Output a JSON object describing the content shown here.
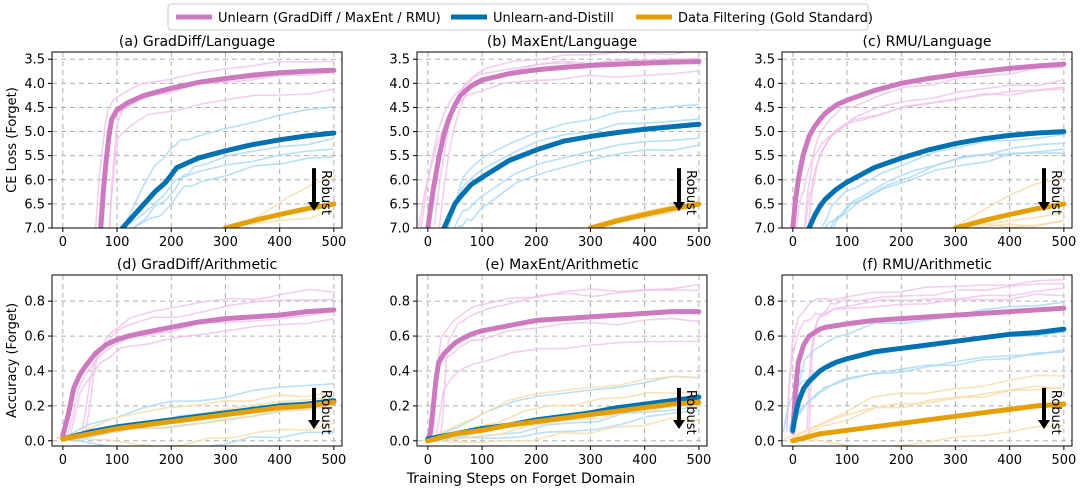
{
  "legend": {
    "entries": [
      {
        "label": "Unlearn (GradDiff / MaxEnt / RMU)",
        "color": "#cc79c0"
      },
      {
        "label": "Unlearn-and-Distill",
        "color": "#0072b2"
      },
      {
        "label": "Data Filtering (Gold Standard)",
        "color": "#e69f00"
      }
    ]
  },
  "shared": {
    "xlabel": "Training Steps on Forget Domain",
    "robust_label": "Robust",
    "x_ticks": [
      0,
      100,
      200,
      300,
      400,
      500
    ],
    "grid": true
  },
  "chart_data": [
    {
      "type": "line",
      "title": "(a) GradDiff/Language",
      "ylabel": "CE Loss (Forget)",
      "ylim": [
        7.0,
        3.35
      ],
      "y_ticks": [
        3.5,
        4.0,
        4.5,
        5.0,
        5.5,
        6.0,
        6.5,
        7.0
      ],
      "xlim": [
        -20,
        515
      ],
      "series": [
        {
          "key": "unlearn",
          "x": [
            70,
            75,
            80,
            85,
            90,
            100,
            120,
            150,
            200,
            250,
            300,
            350,
            400,
            450,
            500
          ],
          "y": [
            7.0,
            6.2,
            5.6,
            5.1,
            4.75,
            4.55,
            4.4,
            4.25,
            4.1,
            3.98,
            3.9,
            3.83,
            3.78,
            3.75,
            3.73
          ]
        },
        {
          "key": "distill",
          "x": [
            110,
            130,
            150,
            170,
            190,
            200,
            210,
            220,
            230,
            250,
            300,
            350,
            400,
            450,
            500
          ],
          "y": [
            7.0,
            6.75,
            6.5,
            6.25,
            6.05,
            5.9,
            5.75,
            5.7,
            5.65,
            5.55,
            5.4,
            5.27,
            5.17,
            5.09,
            5.03
          ]
        },
        {
          "key": "filter",
          "x": [
            300,
            350,
            400,
            450,
            500
          ],
          "y": [
            7.0,
            6.85,
            6.72,
            6.6,
            6.5
          ]
        }
      ]
    },
    {
      "type": "line",
      "title": "(b) MaxEnt/Language",
      "ylabel": "",
      "ylim": [
        7.0,
        3.35
      ],
      "y_ticks": [
        3.5,
        4.0,
        4.5,
        5.0,
        5.5,
        6.0,
        6.5,
        7.0
      ],
      "xlim": [
        -20,
        515
      ],
      "series": [
        {
          "key": "unlearn",
          "x": [
            0,
            10,
            20,
            30,
            40,
            50,
            60,
            80,
            100,
            150,
            200,
            250,
            300,
            350,
            400,
            450,
            500
          ],
          "y": [
            7.0,
            6.2,
            5.55,
            5.05,
            4.7,
            4.45,
            4.25,
            4.05,
            3.93,
            3.8,
            3.72,
            3.67,
            3.63,
            3.6,
            3.58,
            3.56,
            3.55
          ]
        },
        {
          "key": "distill",
          "x": [
            30,
            40,
            50,
            60,
            80,
            100,
            150,
            200,
            250,
            300,
            350,
            400,
            450,
            500
          ],
          "y": [
            7.0,
            6.75,
            6.5,
            6.35,
            6.1,
            5.95,
            5.6,
            5.38,
            5.2,
            5.1,
            5.02,
            4.95,
            4.9,
            4.85
          ]
        },
        {
          "key": "filter",
          "x": [
            300,
            350,
            400,
            450,
            500
          ],
          "y": [
            7.0,
            6.85,
            6.72,
            6.6,
            6.5
          ]
        }
      ]
    },
    {
      "type": "line",
      "title": "(c) RMU/Language",
      "ylabel": "",
      "ylim": [
        7.0,
        3.35
      ],
      "y_ticks": [
        3.5,
        4.0,
        4.5,
        5.0,
        5.5,
        6.0,
        6.5,
        7.0
      ],
      "xlim": [
        -20,
        515
      ],
      "series": [
        {
          "key": "unlearn",
          "x": [
            0,
            5,
            10,
            15,
            20,
            30,
            40,
            50,
            60,
            80,
            100,
            150,
            200,
            250,
            300,
            350,
            400,
            450,
            500
          ],
          "y": [
            7.0,
            6.4,
            6.0,
            5.7,
            5.45,
            5.1,
            4.9,
            4.75,
            4.62,
            4.45,
            4.35,
            4.15,
            4.0,
            3.9,
            3.82,
            3.75,
            3.69,
            3.64,
            3.6
          ]
        },
        {
          "key": "distill",
          "x": [
            30,
            40,
            50,
            60,
            80,
            100,
            150,
            200,
            250,
            300,
            350,
            400,
            450,
            500
          ],
          "y": [
            7.0,
            6.75,
            6.55,
            6.4,
            6.2,
            6.05,
            5.75,
            5.55,
            5.38,
            5.25,
            5.15,
            5.08,
            5.03,
            5.0
          ]
        },
        {
          "key": "filter",
          "x": [
            300,
            350,
            400,
            450,
            500
          ],
          "y": [
            7.0,
            6.85,
            6.72,
            6.6,
            6.5
          ]
        }
      ]
    },
    {
      "type": "line",
      "title": "(d) GradDiff/Arithmetic",
      "ylabel": "Accuracy (Forget)",
      "ylim": [
        -0.03,
        0.95
      ],
      "y_ticks": [
        0.0,
        0.2,
        0.4,
        0.6,
        0.8
      ],
      "xlim": [
        -20,
        515
      ],
      "series": [
        {
          "key": "unlearn",
          "x": [
            0,
            10,
            20,
            30,
            40,
            50,
            60,
            80,
            100,
            120,
            150,
            200,
            250,
            300,
            350,
            400,
            450,
            500
          ],
          "y": [
            0.03,
            0.15,
            0.3,
            0.37,
            0.42,
            0.46,
            0.5,
            0.55,
            0.58,
            0.6,
            0.62,
            0.65,
            0.68,
            0.7,
            0.71,
            0.72,
            0.74,
            0.75
          ]
        },
        {
          "key": "distill",
          "x": [
            0,
            50,
            100,
            150,
            200,
            250,
            300,
            350,
            400,
            450,
            500
          ],
          "y": [
            0.01,
            0.05,
            0.08,
            0.1,
            0.12,
            0.14,
            0.16,
            0.18,
            0.2,
            0.21,
            0.23
          ]
        },
        {
          "key": "filter",
          "x": [
            0,
            50,
            100,
            150,
            200,
            250,
            300,
            350,
            400,
            450,
            500
          ],
          "y": [
            0.01,
            0.04,
            0.07,
            0.09,
            0.11,
            0.13,
            0.15,
            0.17,
            0.19,
            0.2,
            0.22
          ]
        }
      ]
    },
    {
      "type": "line",
      "title": "(e) MaxEnt/Arithmetic",
      "ylabel": "",
      "ylim": [
        -0.03,
        0.95
      ],
      "y_ticks": [
        0.0,
        0.2,
        0.4,
        0.6,
        0.8
      ],
      "xlim": [
        -20,
        515
      ],
      "series": [
        {
          "key": "unlearn",
          "x": [
            0,
            5,
            10,
            15,
            20,
            30,
            40,
            50,
            60,
            80,
            100,
            150,
            200,
            250,
            300,
            350,
            400,
            450,
            500
          ],
          "y": [
            0.0,
            0.05,
            0.2,
            0.35,
            0.45,
            0.5,
            0.53,
            0.56,
            0.58,
            0.61,
            0.63,
            0.66,
            0.69,
            0.7,
            0.71,
            0.72,
            0.73,
            0.74,
            0.74
          ]
        },
        {
          "key": "distill",
          "x": [
            0,
            50,
            100,
            150,
            200,
            250,
            300,
            350,
            400,
            450,
            500
          ],
          "y": [
            0.01,
            0.04,
            0.07,
            0.09,
            0.12,
            0.14,
            0.16,
            0.19,
            0.21,
            0.23,
            0.25
          ]
        },
        {
          "key": "filter",
          "x": [
            0,
            50,
            100,
            150,
            200,
            250,
            300,
            350,
            400,
            450,
            500
          ],
          "y": [
            0.0,
            0.04,
            0.06,
            0.09,
            0.11,
            0.13,
            0.15,
            0.17,
            0.19,
            0.21,
            0.22
          ]
        }
      ]
    },
    {
      "type": "line",
      "title": "(f) RMU/Arithmetic",
      "ylabel": "",
      "ylim": [
        -0.03,
        0.95
      ],
      "y_ticks": [
        0.0,
        0.2,
        0.4,
        0.6,
        0.8
      ],
      "xlim": [
        -20,
        515
      ],
      "series": [
        {
          "key": "unlearn",
          "x": [
            0,
            5,
            10,
            20,
            30,
            40,
            50,
            60,
            80,
            100,
            150,
            200,
            250,
            300,
            350,
            400,
            450,
            500
          ],
          "y": [
            0.05,
            0.3,
            0.45,
            0.55,
            0.6,
            0.62,
            0.64,
            0.65,
            0.66,
            0.67,
            0.69,
            0.7,
            0.71,
            0.72,
            0.73,
            0.74,
            0.75,
            0.76
          ]
        },
        {
          "key": "distill",
          "x": [
            0,
            5,
            10,
            20,
            30,
            40,
            50,
            60,
            80,
            100,
            150,
            200,
            250,
            300,
            350,
            400,
            450,
            500
          ],
          "y": [
            0.06,
            0.15,
            0.22,
            0.3,
            0.34,
            0.37,
            0.4,
            0.42,
            0.45,
            0.47,
            0.51,
            0.53,
            0.55,
            0.57,
            0.59,
            0.61,
            0.62,
            0.64
          ]
        },
        {
          "key": "filter",
          "x": [
            0,
            50,
            100,
            150,
            200,
            250,
            300,
            350,
            400,
            450,
            500
          ],
          "y": [
            0.0,
            0.04,
            0.06,
            0.08,
            0.1,
            0.12,
            0.14,
            0.16,
            0.18,
            0.2,
            0.21
          ]
        }
      ]
    }
  ]
}
